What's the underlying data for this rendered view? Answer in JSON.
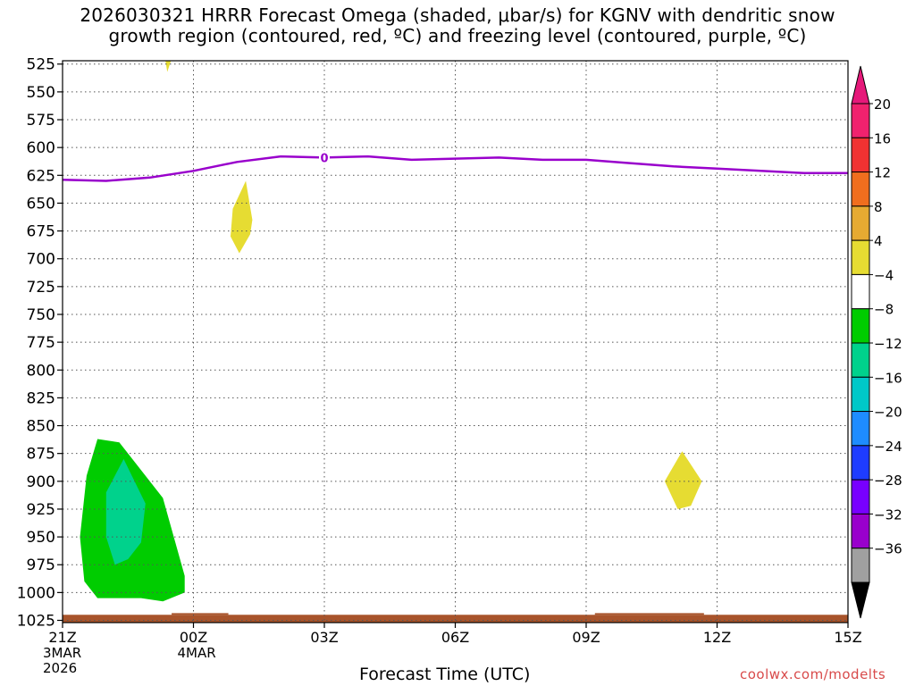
{
  "title_line1": "2026030321 HRRR Forecast Omega (shaded, μbar/s) for KGNV with dendritic snow",
  "title_line2": "growth region (contoured, red, ºC) and freezing level (contoured, purple, ºC)",
  "credit": "coolwx.com/modelts",
  "chart_data": {
    "type": "time-height contour",
    "xlabel": "Forecast Time (UTC)",
    "ylabel": "",
    "x_hours": [
      0,
      3,
      6,
      9,
      12,
      15,
      18
    ],
    "x_tick_labels": [
      [
        "21Z",
        "3MAR",
        "2026"
      ],
      [
        "00Z",
        "4MAR"
      ],
      [
        "03Z"
      ],
      [
        "06Z"
      ],
      [
        "09Z"
      ],
      [
        "12Z"
      ],
      [
        "15Z"
      ]
    ],
    "y_levels_hPa": [
      525,
      550,
      575,
      600,
      625,
      650,
      675,
      700,
      725,
      750,
      775,
      800,
      825,
      850,
      875,
      900,
      925,
      950,
      975,
      1000,
      1025
    ],
    "ylim": [
      1027,
      522
    ],
    "grid": true,
    "freezing_level": {
      "name": "0",
      "color": "#9900cc",
      "hours": [
        0,
        1,
        2,
        3,
        4,
        5,
        6,
        7,
        8,
        9,
        10,
        11,
        12,
        13,
        14,
        15,
        16,
        17,
        18
      ],
      "pressure_hPa": [
        629,
        630,
        627,
        621,
        613,
        608,
        609,
        608,
        611,
        610,
        609,
        611,
        611,
        614,
        617,
        619,
        621,
        623,
        623
      ]
    },
    "omega_regions": [
      {
        "name": "omega -8 to -4",
        "color": "#00cc00",
        "points": [
          [
            0.8,
            1005
          ],
          [
            0.5,
            990
          ],
          [
            0.4,
            950
          ],
          [
            0.55,
            895
          ],
          [
            0.8,
            862
          ],
          [
            1.3,
            865
          ],
          [
            2.3,
            915
          ],
          [
            2.8,
            985
          ],
          [
            2.8,
            1000
          ],
          [
            2.3,
            1008
          ],
          [
            1.8,
            1005
          ]
        ]
      },
      {
        "name": "omega -12 to -8",
        "color": "#00d28c",
        "points": [
          [
            1.2,
            975
          ],
          [
            1.0,
            950
          ],
          [
            1.0,
            910
          ],
          [
            1.4,
            880
          ],
          [
            1.9,
            920
          ],
          [
            1.8,
            955
          ],
          [
            1.5,
            970
          ]
        ]
      },
      {
        "name": "omega 4 to 8 (a)",
        "color": "#e6dc32",
        "points": [
          [
            4.2,
            630
          ],
          [
            4.35,
            665
          ],
          [
            4.3,
            678
          ],
          [
            4.05,
            695
          ],
          [
            3.85,
            680
          ],
          [
            3.9,
            655
          ]
        ]
      },
      {
        "name": "omega 4 to 8 (b)",
        "color": "#e6dc32",
        "points": [
          [
            14.2,
            873
          ],
          [
            14.65,
            900
          ],
          [
            14.4,
            922
          ],
          [
            14.1,
            925
          ],
          [
            13.8,
            900
          ]
        ]
      },
      {
        "name": "omega 4 to 8 (c)",
        "color": "#e6dc32",
        "points": [
          [
            2.35,
            520
          ],
          [
            2.5,
            520
          ],
          [
            2.4,
            532
          ]
        ]
      }
    ],
    "terrain": {
      "color": "#a8542b",
      "hours": [
        0,
        18
      ],
      "pressure_hPa": [
        1020,
        1030
      ]
    },
    "colorbar": {
      "labels": [
        "20",
        "16",
        "12",
        "8",
        "4",
        "−4",
        "−8",
        "−12",
        "−16",
        "−20",
        "−24",
        "−28",
        "−32",
        "−36"
      ],
      "colors": [
        "#f0226e",
        "#f03232",
        "#f06e1e",
        "#e6aa32",
        "#e6dc32",
        "#ffffff",
        "#00cc00",
        "#00d28c",
        "#00c8c8",
        "#1e8cff",
        "#1e3cff",
        "#7800ff",
        "#9900cc",
        "#a0a0a0"
      ],
      "top_arrow_color": "#e6197a",
      "bottom_arrow_color": "#000000"
    }
  }
}
